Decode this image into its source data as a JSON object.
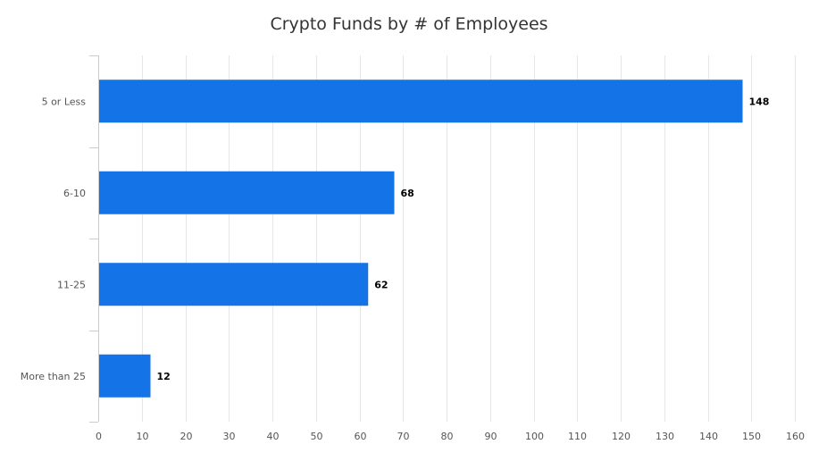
{
  "chart_data": {
    "type": "bar",
    "orientation": "horizontal",
    "title": "Crypto Funds by # of Employees",
    "xlabel": "",
    "ylabel": "",
    "categories": [
      "5 or Less",
      "6-10",
      "11-25",
      "More than 25"
    ],
    "values": [
      148,
      68,
      62,
      12
    ],
    "data_labels": [
      "148",
      "68",
      "62",
      "12"
    ],
    "xlim": [
      0,
      160
    ],
    "ticks": [
      0,
      10,
      20,
      30,
      40,
      50,
      60,
      70,
      80,
      90,
      100,
      110,
      120,
      130,
      140,
      150,
      160
    ],
    "tick_labels": [
      "0",
      "10",
      "20",
      "30",
      "40",
      "50",
      "60",
      "70",
      "80",
      "90",
      "100",
      "110",
      "120",
      "130",
      "140",
      "150",
      "160"
    ],
    "grid": true,
    "legend": "none",
    "bar_color": "#1473e6"
  }
}
